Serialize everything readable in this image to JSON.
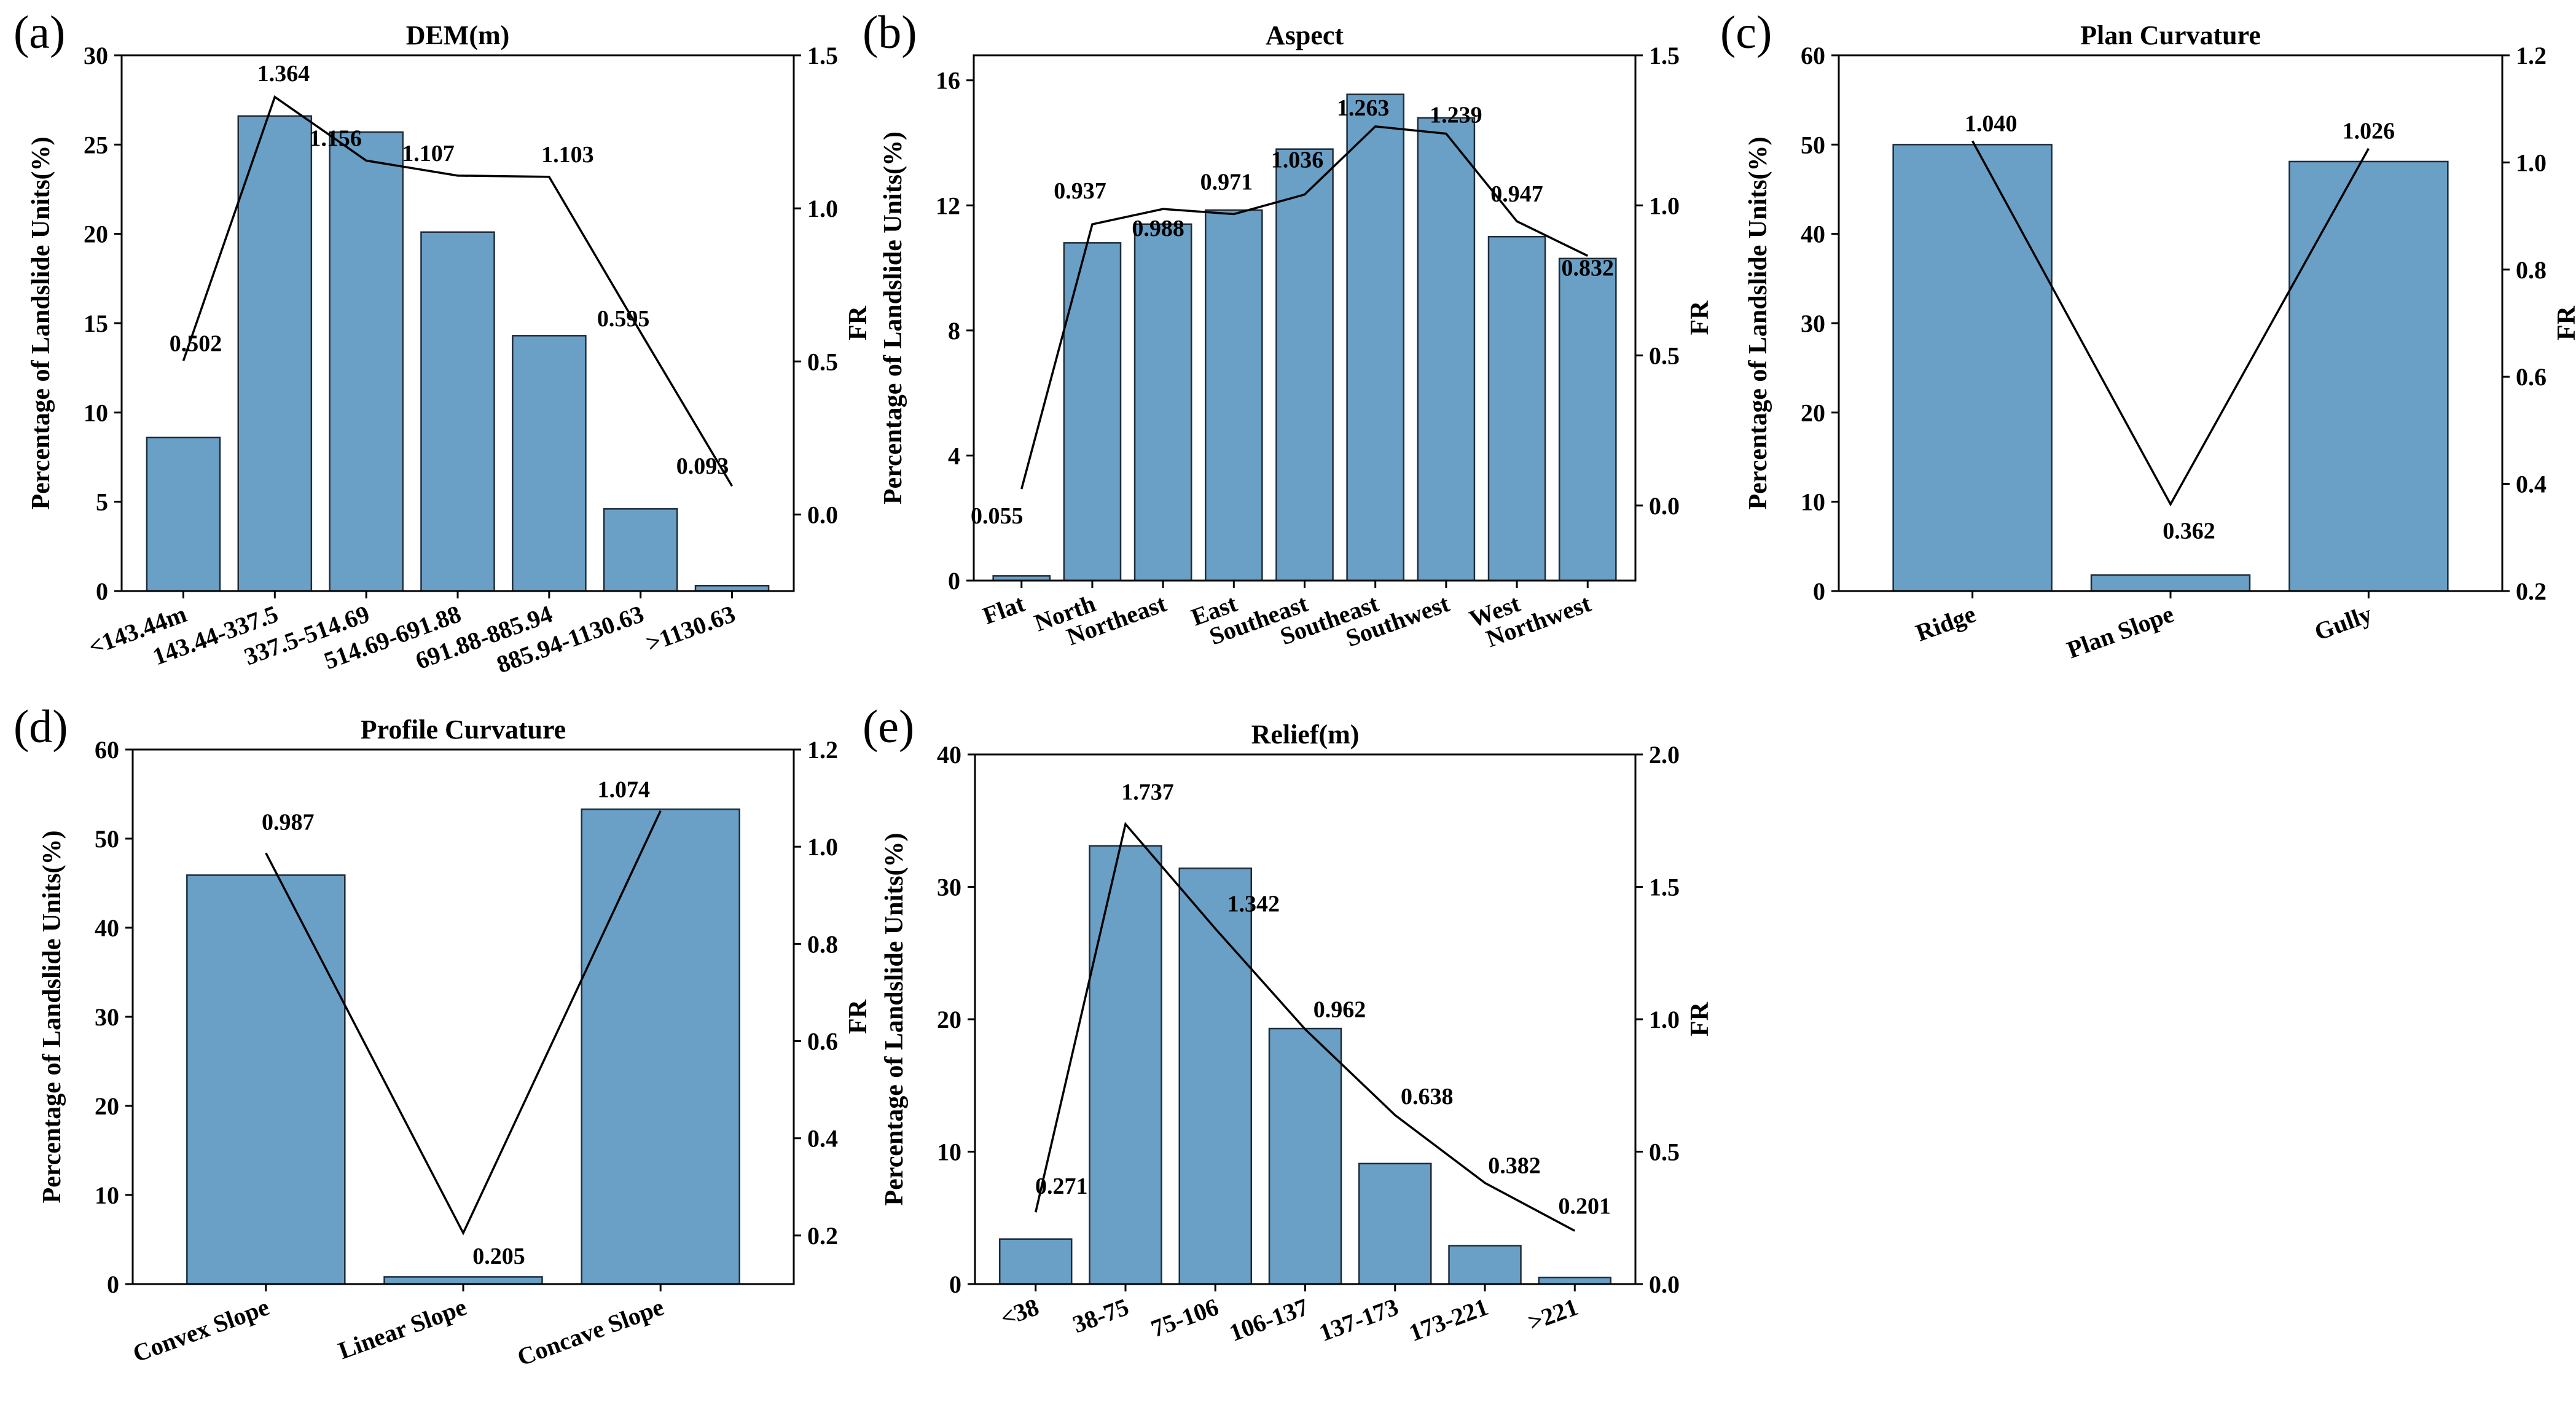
{
  "colors": {
    "bar_fill": "#6a9fc6",
    "bar_stroke": "#1f2d3a",
    "line": "#000000",
    "axis": "#000000"
  },
  "chart_data": [
    {
      "id": "a",
      "panel_label": "(a)",
      "type": "bar",
      "title": "DEM(m)",
      "ylabel": "Percentage of Landslide Units(%)",
      "y2label": "FR",
      "categories": [
        "<143.44m",
        "143.44-337.5",
        "337.5-514.69",
        "514.69-691.88",
        "691.88-885.94",
        "885.94-1130.63",
        ">1130.63"
      ],
      "series": [
        {
          "name": "Percentage of Landslide Units(%)",
          "axis": "left",
          "type": "bar",
          "values": [
            8.6,
            26.6,
            25.7,
            20.1,
            14.3,
            4.6,
            0.3
          ]
        },
        {
          "name": "FR",
          "axis": "right",
          "type": "line",
          "values": [
            0.502,
            1.364,
            1.156,
            1.107,
            1.103,
            0.595,
            0.093
          ],
          "labels": [
            "0.502",
            "1.364",
            "1.156",
            "1.107",
            "1.103",
            "0.595",
            "0.093"
          ]
        }
      ],
      "ylim": [
        0,
        30
      ],
      "yticks": [
        0,
        5,
        10,
        15,
        20,
        25,
        30
      ],
      "ytick_labels": [
        "0",
        "5",
        "10",
        "15",
        "20",
        "25",
        "30"
      ],
      "y2lim": [
        -0.25,
        1.5
      ],
      "y2ticks": [
        0.0,
        0.5,
        1.0,
        1.5
      ],
      "y2tick_labels": [
        "0.0",
        "0.5",
        "1.0",
        "1.5"
      ]
    },
    {
      "id": "b",
      "panel_label": "(b)",
      "type": "bar",
      "title": "Aspect",
      "ylabel": "Percentage of Landslide Units(%)",
      "y2label": "FR",
      "categories": [
        "Flat",
        "North",
        "Northeast",
        "East",
        "Southeast",
        "Southeast",
        "Southwest",
        "West",
        "Northwest"
      ],
      "series": [
        {
          "name": "Percentage of Landslide Units(%)",
          "axis": "left",
          "type": "bar",
          "values": [
            0.15,
            10.8,
            11.4,
            11.85,
            13.8,
            15.55,
            14.8,
            11.0,
            10.3
          ]
        },
        {
          "name": "FR",
          "axis": "right",
          "type": "line",
          "values": [
            0.055,
            0.937,
            0.988,
            0.971,
            1.036,
            1.263,
            1.239,
            0.947,
            0.832
          ],
          "labels": [
            "0.055",
            "0.937",
            "0.988",
            "0.971",
            "1.036",
            "1.263",
            "1.239",
            "0.947",
            "0.832"
          ]
        }
      ],
      "ylim": [
        0,
        16.8
      ],
      "yticks": [
        0,
        4,
        8,
        12,
        16
      ],
      "ytick_labels": [
        "0",
        "4",
        "8",
        "12",
        "16"
      ],
      "y2lim": [
        -0.25,
        1.5
      ],
      "y2ticks": [
        0.0,
        0.5,
        1.0,
        1.5
      ],
      "y2tick_labels": [
        "0.0",
        "0.5",
        "1.0",
        "1.5"
      ]
    },
    {
      "id": "c",
      "panel_label": "(c)",
      "type": "bar",
      "title": "Plan Curvature",
      "ylabel": "Percentage of Landslide Units(%)",
      "y2label": "FR",
      "categories": [
        "Ridge",
        "Plan Slope",
        "Gully"
      ],
      "series": [
        {
          "name": "Percentage of Landslide Units(%)",
          "axis": "left",
          "type": "bar",
          "values": [
            50.0,
            1.8,
            48.1
          ]
        },
        {
          "name": "FR",
          "axis": "right",
          "type": "line",
          "values": [
            1.04,
            0.362,
            1.026
          ],
          "labels": [
            "1.040",
            "0.362",
            "1.026"
          ]
        }
      ],
      "ylim": [
        0,
        60
      ],
      "yticks": [
        0,
        10,
        20,
        30,
        40,
        50,
        60
      ],
      "ytick_labels": [
        "0",
        "10",
        "20",
        "30",
        "40",
        "50",
        "60"
      ],
      "y2lim": [
        0.2,
        1.2
      ],
      "y2ticks": [
        0.2,
        0.4,
        0.6,
        0.8,
        1.0,
        1.2
      ],
      "y2tick_labels": [
        "0.2",
        "0.4",
        "0.6",
        "0.8",
        "1.0",
        "1.2"
      ]
    },
    {
      "id": "d",
      "panel_label": "(d)",
      "type": "bar",
      "title": "Profile Curvature",
      "ylabel": "Percentage of Landslide Units(%)",
      "y2label": "FR",
      "categories": [
        "Convex Slope",
        "Linear Slope",
        "Concave Slope"
      ],
      "series": [
        {
          "name": "Percentage of Landslide Units(%)",
          "axis": "left",
          "type": "bar",
          "values": [
            45.9,
            0.8,
            53.3
          ]
        },
        {
          "name": "FR",
          "axis": "right",
          "type": "line",
          "values": [
            0.987,
            0.205,
            1.074
          ],
          "labels": [
            "0.987",
            "0.205",
            "1.074"
          ]
        }
      ],
      "ylim": [
        0,
        60
      ],
      "yticks": [
        0,
        10,
        20,
        30,
        40,
        50,
        60
      ],
      "ytick_labels": [
        "0",
        "10",
        "20",
        "30",
        "40",
        "50",
        "60"
      ],
      "y2lim": [
        0.1,
        1.2
      ],
      "y2ticks": [
        0.2,
        0.4,
        0.6,
        0.8,
        1.0,
        1.2
      ],
      "y2tick_labels": [
        "0.2",
        "0.4",
        "0.6",
        "0.8",
        "1.0",
        "1.2"
      ]
    },
    {
      "id": "e",
      "panel_label": "(e)",
      "type": "bar",
      "title": "Relief(m)",
      "ylabel": "Percentage of Landslide Units(%)",
      "y2label": "FR",
      "categories": [
        "<38",
        "38-75",
        "75-106",
        "106-137",
        "137-173",
        "173-221",
        ">221"
      ],
      "series": [
        {
          "name": "Percentage of Landslide Units(%)",
          "axis": "left",
          "type": "bar",
          "values": [
            3.4,
            33.1,
            31.4,
            19.3,
            9.1,
            2.9,
            0.5
          ]
        },
        {
          "name": "FR",
          "axis": "right",
          "type": "line",
          "values": [
            0.271,
            1.737,
            1.342,
            0.962,
            0.638,
            0.382,
            0.201
          ],
          "labels": [
            "0.271",
            "1.737",
            "1.342",
            "0.962",
            "0.638",
            "0.382",
            "0.201"
          ]
        }
      ],
      "ylim": [
        0,
        40
      ],
      "yticks": [
        0,
        10,
        20,
        30,
        40
      ],
      "ytick_labels": [
        "0",
        "10",
        "20",
        "30",
        "40"
      ],
      "y2lim": [
        0,
        2.0
      ],
      "y2ticks": [
        0.0,
        0.5,
        1.0,
        1.5,
        2.0
      ],
      "y2tick_labels": [
        "0.0",
        "0.5",
        "1.0",
        "1.5",
        "2.0"
      ]
    }
  ]
}
